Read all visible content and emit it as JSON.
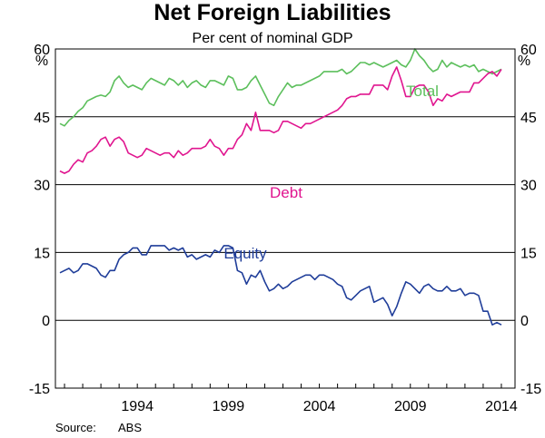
{
  "chart_data": {
    "type": "line",
    "title": "Net Foreign Liabilities",
    "subtitle": "Per cent of nominal GDP",
    "y_unit_left": "%",
    "y_unit_right": "%",
    "ylim": [
      -15,
      60
    ],
    "yticks": [
      -15,
      0,
      15,
      30,
      45,
      60
    ],
    "ytick_labels": [
      "-15",
      "0",
      "15",
      "30",
      "45",
      "60"
    ],
    "xlim": [
      1989.5,
      2014.75
    ],
    "xticks": [
      1994,
      1999,
      2004,
      2009,
      2014
    ],
    "xtick_labels": [
      "1994",
      "1999",
      "2004",
      "2009",
      "2014"
    ],
    "source_label": "Source:",
    "source": "ABS",
    "colors": {
      "Total": "#5cbf5c",
      "Debt": "#e0158f",
      "Equity": "#1f3d99",
      "axis": "#000000"
    },
    "series": [
      {
        "name": "Total",
        "label": "Total",
        "x": [
          1989.75,
          1990.0,
          1990.25,
          1990.5,
          1990.75,
          1991.0,
          1991.25,
          1991.5,
          1991.75,
          1992.0,
          1992.25,
          1992.5,
          1992.75,
          1993.0,
          1993.25,
          1993.5,
          1993.75,
          1994.0,
          1994.25,
          1994.5,
          1994.75,
          1995.0,
          1995.25,
          1995.5,
          1995.75,
          1996.0,
          1996.25,
          1996.5,
          1996.75,
          1997.0,
          1997.25,
          1997.5,
          1997.75,
          1998.0,
          1998.25,
          1998.5,
          1998.75,
          1999.0,
          1999.25,
          1999.5,
          1999.75,
          2000.0,
          2000.25,
          2000.5,
          2000.75,
          2001.0,
          2001.25,
          2001.5,
          2001.75,
          2002.0,
          2002.25,
          2002.5,
          2002.75,
          2003.0,
          2003.25,
          2003.5,
          2003.75,
          2004.0,
          2004.25,
          2004.5,
          2004.75,
          2005.0,
          2005.25,
          2005.5,
          2005.75,
          2006.0,
          2006.25,
          2006.5,
          2006.75,
          2007.0,
          2007.25,
          2007.5,
          2007.75,
          2008.0,
          2008.25,
          2008.5,
          2008.75,
          2009.0,
          2009.25,
          2009.5,
          2009.75,
          2010.0,
          2010.25,
          2010.5,
          2010.75,
          2011.0,
          2011.25,
          2011.5,
          2011.75,
          2012.0,
          2012.25,
          2012.5,
          2012.75,
          2013.0,
          2013.25,
          2013.5,
          2013.75,
          2014.0
        ],
        "values": [
          43.5,
          43.0,
          44.2,
          45.0,
          46.2,
          47.0,
          48.5,
          49.0,
          49.5,
          49.8,
          49.5,
          50.5,
          53.0,
          54.0,
          52.5,
          51.5,
          52.0,
          51.5,
          51.0,
          52.5,
          53.5,
          53.0,
          52.5,
          52.0,
          53.5,
          53.0,
          52.0,
          53.0,
          51.5,
          52.5,
          53.0,
          52.0,
          51.5,
          53.0,
          53.0,
          52.5,
          52.0,
          54.0,
          53.5,
          51.0,
          51.0,
          51.5,
          53.0,
          54.0,
          52.0,
          50.0,
          48.0,
          47.5,
          49.5,
          51.0,
          52.5,
          51.5,
          52.0,
          52.0,
          52.5,
          53.0,
          53.5,
          54.0,
          55.0,
          55.0,
          55.0,
          55.0,
          55.5,
          54.5,
          55.0,
          56.0,
          57.0,
          57.0,
          56.5,
          57.0,
          56.5,
          56.0,
          56.5,
          57.0,
          57.5,
          56.5,
          56.0,
          57.5,
          60.0,
          58.5,
          57.5,
          56.0,
          55.0,
          55.5,
          57.5,
          56.0,
          57.0,
          56.5,
          56.0,
          56.5,
          56.0,
          56.5,
          55.0,
          55.5,
          55.0,
          54.5,
          55.0,
          55.5
        ]
      },
      {
        "name": "Debt",
        "label": "Debt",
        "x": [
          1989.75,
          1990.0,
          1990.25,
          1990.5,
          1990.75,
          1991.0,
          1991.25,
          1991.5,
          1991.75,
          1992.0,
          1992.25,
          1992.5,
          1992.75,
          1993.0,
          1993.25,
          1993.5,
          1993.75,
          1994.0,
          1994.25,
          1994.5,
          1994.75,
          1995.0,
          1995.25,
          1995.5,
          1995.75,
          1996.0,
          1996.25,
          1996.5,
          1996.75,
          1997.0,
          1997.25,
          1997.5,
          1997.75,
          1998.0,
          1998.25,
          1998.5,
          1998.75,
          1999.0,
          1999.25,
          1999.5,
          1999.75,
          2000.0,
          2000.25,
          2000.5,
          2000.75,
          2001.0,
          2001.25,
          2001.5,
          2001.75,
          2002.0,
          2002.25,
          2002.5,
          2002.75,
          2003.0,
          2003.25,
          2003.5,
          2003.75,
          2004.0,
          2004.25,
          2004.5,
          2004.75,
          2005.0,
          2005.25,
          2005.5,
          2005.75,
          2006.0,
          2006.25,
          2006.5,
          2006.75,
          2007.0,
          2007.25,
          2007.5,
          2007.75,
          2008.0,
          2008.25,
          2008.5,
          2008.75,
          2009.0,
          2009.25,
          2009.5,
          2009.75,
          2010.0,
          2010.25,
          2010.5,
          2010.75,
          2011.0,
          2011.25,
          2011.5,
          2011.75,
          2012.0,
          2012.25,
          2012.5,
          2012.75,
          2013.0,
          2013.25,
          2013.5,
          2013.75,
          2014.0
        ],
        "values": [
          33.0,
          32.5,
          33.0,
          34.5,
          35.5,
          35.0,
          37.0,
          37.5,
          38.5,
          40.0,
          40.5,
          38.5,
          40.0,
          40.5,
          39.5,
          37.0,
          36.5,
          36.0,
          36.5,
          38.0,
          37.5,
          37.0,
          36.5,
          37.0,
          37.0,
          36.0,
          37.5,
          36.5,
          37.0,
          38.0,
          38.0,
          38.0,
          38.5,
          40.0,
          38.5,
          38.0,
          36.5,
          38.0,
          38.0,
          40.0,
          41.0,
          43.5,
          42.0,
          46.0,
          42.0,
          42.0,
          42.0,
          41.5,
          42.0,
          44.0,
          44.0,
          43.5,
          43.0,
          42.5,
          43.5,
          43.5,
          44.0,
          44.5,
          45.0,
          45.5,
          46.0,
          46.5,
          47.5,
          49.0,
          49.5,
          49.5,
          50.0,
          50.0,
          50.0,
          52.0,
          52.0,
          52.0,
          51.0,
          54.0,
          56.0,
          53.0,
          49.5,
          49.5,
          51.5,
          52.0,
          52.0,
          50.5,
          47.5,
          49.0,
          48.5,
          50.0,
          49.5,
          50.0,
          50.5,
          50.5,
          50.5,
          52.5,
          52.5,
          53.5,
          54.5,
          55.0,
          54.0,
          55.5
        ]
      },
      {
        "name": "Equity",
        "label": "Equity",
        "x": [
          1989.75,
          1990.0,
          1990.25,
          1990.5,
          1990.75,
          1991.0,
          1991.25,
          1991.5,
          1991.75,
          1992.0,
          1992.25,
          1992.5,
          1992.75,
          1993.0,
          1993.25,
          1993.5,
          1993.75,
          1994.0,
          1994.25,
          1994.5,
          1994.75,
          1995.0,
          1995.25,
          1995.5,
          1995.75,
          1996.0,
          1996.25,
          1996.5,
          1996.75,
          1997.0,
          1997.25,
          1997.5,
          1997.75,
          1998.0,
          1998.25,
          1998.5,
          1998.75,
          1999.0,
          1999.25,
          1999.5,
          1999.75,
          2000.0,
          2000.25,
          2000.5,
          2000.75,
          2001.0,
          2001.25,
          2001.5,
          2001.75,
          2002.0,
          2002.25,
          2002.5,
          2002.75,
          2003.0,
          2003.25,
          2003.5,
          2003.75,
          2004.0,
          2004.25,
          2004.5,
          2004.75,
          2005.0,
          2005.25,
          2005.5,
          2005.75,
          2006.0,
          2006.25,
          2006.5,
          2006.75,
          2007.0,
          2007.25,
          2007.5,
          2007.75,
          2008.0,
          2008.25,
          2008.5,
          2008.75,
          2009.0,
          2009.25,
          2009.5,
          2009.75,
          2010.0,
          2010.25,
          2010.5,
          2010.75,
          2011.0,
          2011.25,
          2011.5,
          2011.75,
          2012.0,
          2012.25,
          2012.5,
          2012.75,
          2013.0,
          2013.25,
          2013.5,
          2013.75,
          2014.0
        ],
        "values": [
          10.5,
          11.0,
          11.5,
          10.5,
          11.0,
          12.5,
          12.5,
          12.0,
          11.5,
          10.0,
          9.5,
          11.0,
          11.0,
          13.5,
          14.5,
          15.0,
          16.0,
          16.0,
          14.5,
          14.5,
          16.5,
          16.5,
          16.5,
          16.5,
          15.5,
          16.0,
          15.5,
          16.0,
          14.0,
          14.5,
          13.5,
          14.0,
          14.5,
          14.0,
          15.5,
          15.0,
          16.5,
          16.5,
          16.0,
          11.0,
          10.5,
          8.0,
          10.0,
          9.5,
          11.0,
          8.5,
          6.5,
          7.0,
          8.0,
          7.0,
          7.5,
          8.5,
          9.0,
          9.5,
          10.0,
          10.0,
          9.0,
          10.0,
          10.0,
          9.5,
          9.0,
          8.0,
          7.5,
          5.0,
          4.5,
          5.5,
          6.5,
          7.0,
          7.5,
          4.0,
          4.5,
          5.0,
          3.5,
          1.0,
          3.0,
          6.0,
          8.5,
          8.0,
          7.0,
          6.0,
          7.5,
          8.0,
          7.0,
          6.5,
          6.5,
          7.5,
          6.5,
          6.5,
          7.0,
          5.5,
          6.0,
          6.0,
          5.5,
          2.0,
          2.0,
          -1.0,
          -0.5,
          -1.0
        ]
      }
    ]
  }
}
